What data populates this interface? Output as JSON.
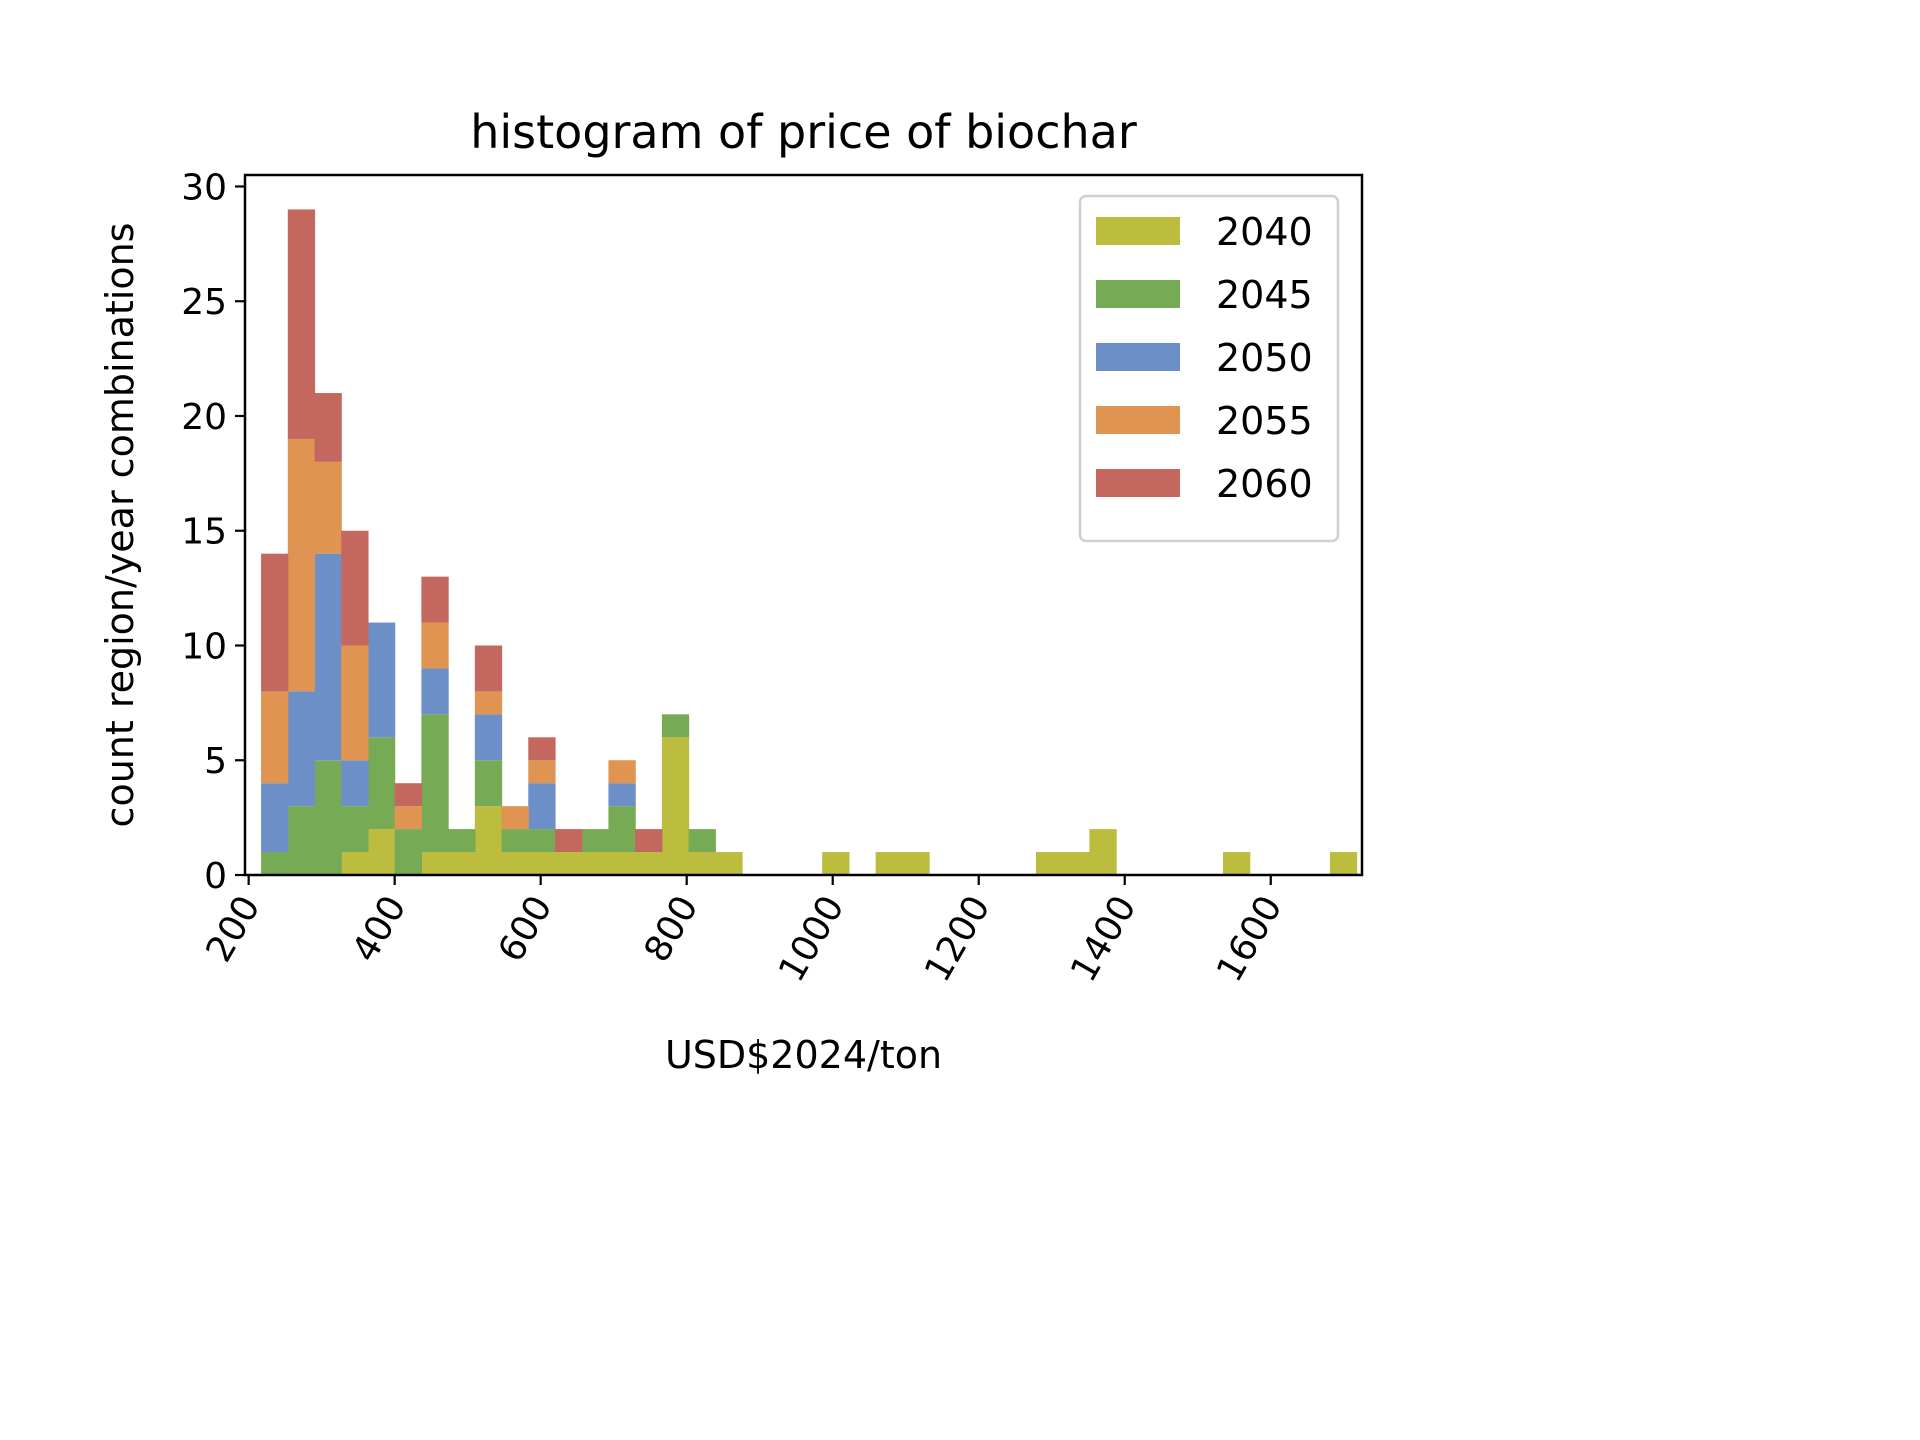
{
  "chart_data": {
    "type": "bar",
    "stacked": true,
    "title": "histogram of price of biochar",
    "xlabel": "USD$2024/ton",
    "ylabel": "count region/year combinations",
    "xlim": [
      195,
      1725
    ],
    "ylim": [
      0,
      30.5
    ],
    "xticks": [
      200,
      400,
      600,
      800,
      1000,
      1200,
      1400,
      1600
    ],
    "yticks": [
      0,
      5,
      10,
      15,
      20,
      25,
      30
    ],
    "grid": false,
    "legend_position": "top-right",
    "bin_width": 36.6,
    "bins": [
      217,
      253.6,
      290.2,
      326.8,
      363.4,
      400,
      436.6,
      473.2,
      509.8,
      546.4,
      583,
      619.6,
      656.2,
      692.8,
      729.4,
      766,
      802.6,
      839.2,
      875.8,
      912.4,
      949,
      985.6,
      1022.2,
      1058.8,
      1095.4,
      1132,
      1168.6,
      1205.2,
      1241.8,
      1278.4,
      1315,
      1351.6,
      1388.2,
      1424.8,
      1461.4,
      1498,
      1534.6,
      1571.2,
      1607.8,
      1644.4,
      1681
    ],
    "series": [
      {
        "name": "2040",
        "color": "#bcbd3e",
        "values": [
          0,
          0,
          0,
          1,
          2,
          0,
          1,
          1,
          3,
          1,
          1,
          1,
          1,
          1,
          1,
          6,
          1,
          1,
          0,
          0,
          0,
          1,
          0,
          1,
          1,
          0,
          0,
          0,
          0,
          1,
          1,
          2,
          0,
          0,
          0,
          0,
          1,
          0,
          0,
          0,
          1
        ]
      },
      {
        "name": "2045",
        "color": "#77aa55",
        "values": [
          1,
          3,
          5,
          2,
          4,
          2,
          6,
          1,
          2,
          1,
          1,
          0,
          1,
          2,
          0,
          1,
          1,
          0,
          0,
          0,
          0,
          0,
          0,
          0,
          0,
          0,
          0,
          0,
          0,
          0,
          0,
          0,
          0,
          0,
          0,
          0,
          0,
          0,
          0,
          0,
          0
        ]
      },
      {
        "name": "2050",
        "color": "#6c8fc8",
        "values": [
          3,
          5,
          9,
          2,
          5,
          0,
          2,
          0,
          2,
          0,
          2,
          0,
          0,
          1,
          0,
          0,
          0,
          0,
          0,
          0,
          0,
          0,
          0,
          0,
          0,
          0,
          0,
          0,
          0,
          0,
          0,
          0,
          0,
          0,
          0,
          0,
          0,
          0,
          0,
          0,
          0
        ]
      },
      {
        "name": "2055",
        "color": "#df9452",
        "values": [
          4,
          11,
          4,
          5,
          0,
          1,
          2,
          0,
          1,
          1,
          1,
          0,
          0,
          1,
          0,
          0,
          0,
          0,
          0,
          0,
          0,
          0,
          0,
          0,
          0,
          0,
          0,
          0,
          0,
          0,
          0,
          0,
          0,
          0,
          0,
          0,
          0,
          0,
          0,
          0,
          0
        ]
      },
      {
        "name": "2060",
        "color": "#c4685f",
        "values": [
          6,
          10,
          3,
          5,
          0,
          1,
          2,
          0,
          2,
          0,
          1,
          1,
          0,
          0,
          1,
          0,
          0,
          0,
          0,
          0,
          0,
          0,
          0,
          0,
          0,
          0,
          0,
          0,
          0,
          0,
          0,
          0,
          0,
          0,
          0,
          0,
          0,
          0,
          0,
          0,
          0
        ]
      }
    ]
  }
}
